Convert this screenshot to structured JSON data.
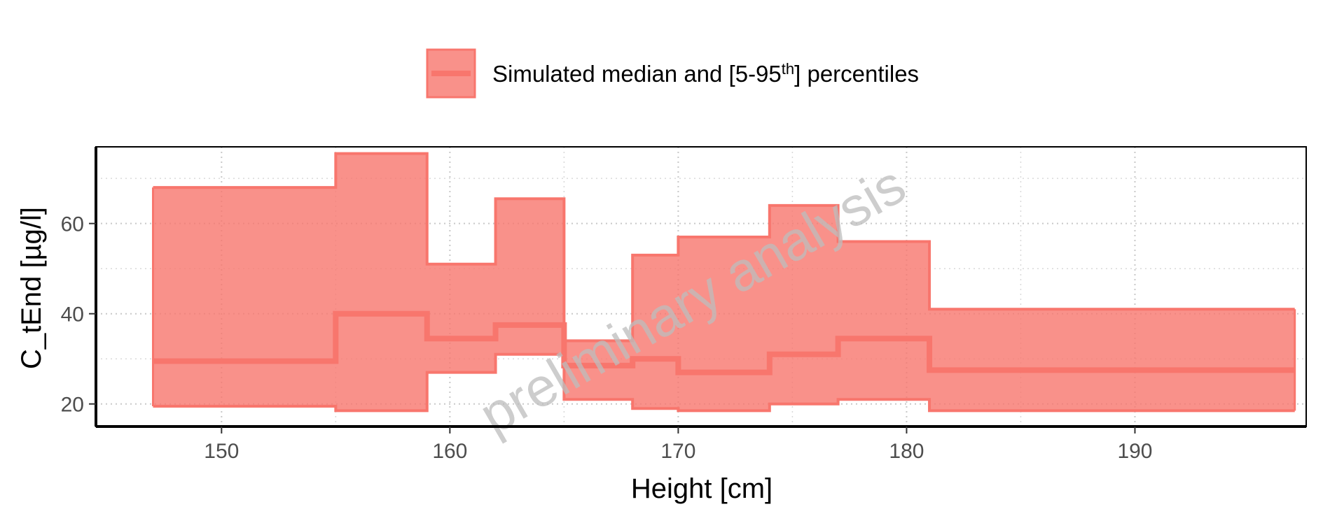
{
  "chart_data": {
    "type": "area",
    "xlabel": "Height [cm]",
    "ylabel": "C_tEnd [µg/l]",
    "xlim": [
      144.5,
      197.5
    ],
    "ylim": [
      15,
      77
    ],
    "x_ticks": [
      150,
      160,
      170,
      180,
      190
    ],
    "y_ticks": [
      20,
      40,
      60
    ],
    "grid": true,
    "legend_position": "top",
    "legend_label": "Simulated median and [5-95",
    "legend_label_sup": "th",
    "legend_label_end": "] percentiles",
    "watermark": "preliminary analysis",
    "fill_color": "#F8766D",
    "bins": [
      {
        "x_start": 147,
        "x_end": 155,
        "p5": 19.5,
        "median": 29.5,
        "p95": 68
      },
      {
        "x_start": 155,
        "x_end": 159,
        "p5": 18.5,
        "median": 40,
        "p95": 75.5
      },
      {
        "x_start": 159,
        "x_end": 162,
        "p5": 27,
        "median": 34.5,
        "p95": 51
      },
      {
        "x_start": 162,
        "x_end": 165,
        "p5": 31,
        "median": 37.5,
        "p95": 65.5
      },
      {
        "x_start": 165,
        "x_end": 168,
        "p5": 21,
        "median": 28.5,
        "p95": 34
      },
      {
        "x_start": 168,
        "x_end": 170,
        "p5": 19,
        "median": 30,
        "p95": 53
      },
      {
        "x_start": 170,
        "x_end": 174,
        "p5": 18.5,
        "median": 27,
        "p95": 57
      },
      {
        "x_start": 174,
        "x_end": 177,
        "p5": 20,
        "median": 31,
        "p95": 64
      },
      {
        "x_start": 177,
        "x_end": 181,
        "p5": 21,
        "median": 34.5,
        "p95": 56
      },
      {
        "x_start": 181,
        "x_end": 197,
        "p5": 18.5,
        "median": 27.5,
        "p95": 41
      }
    ]
  }
}
